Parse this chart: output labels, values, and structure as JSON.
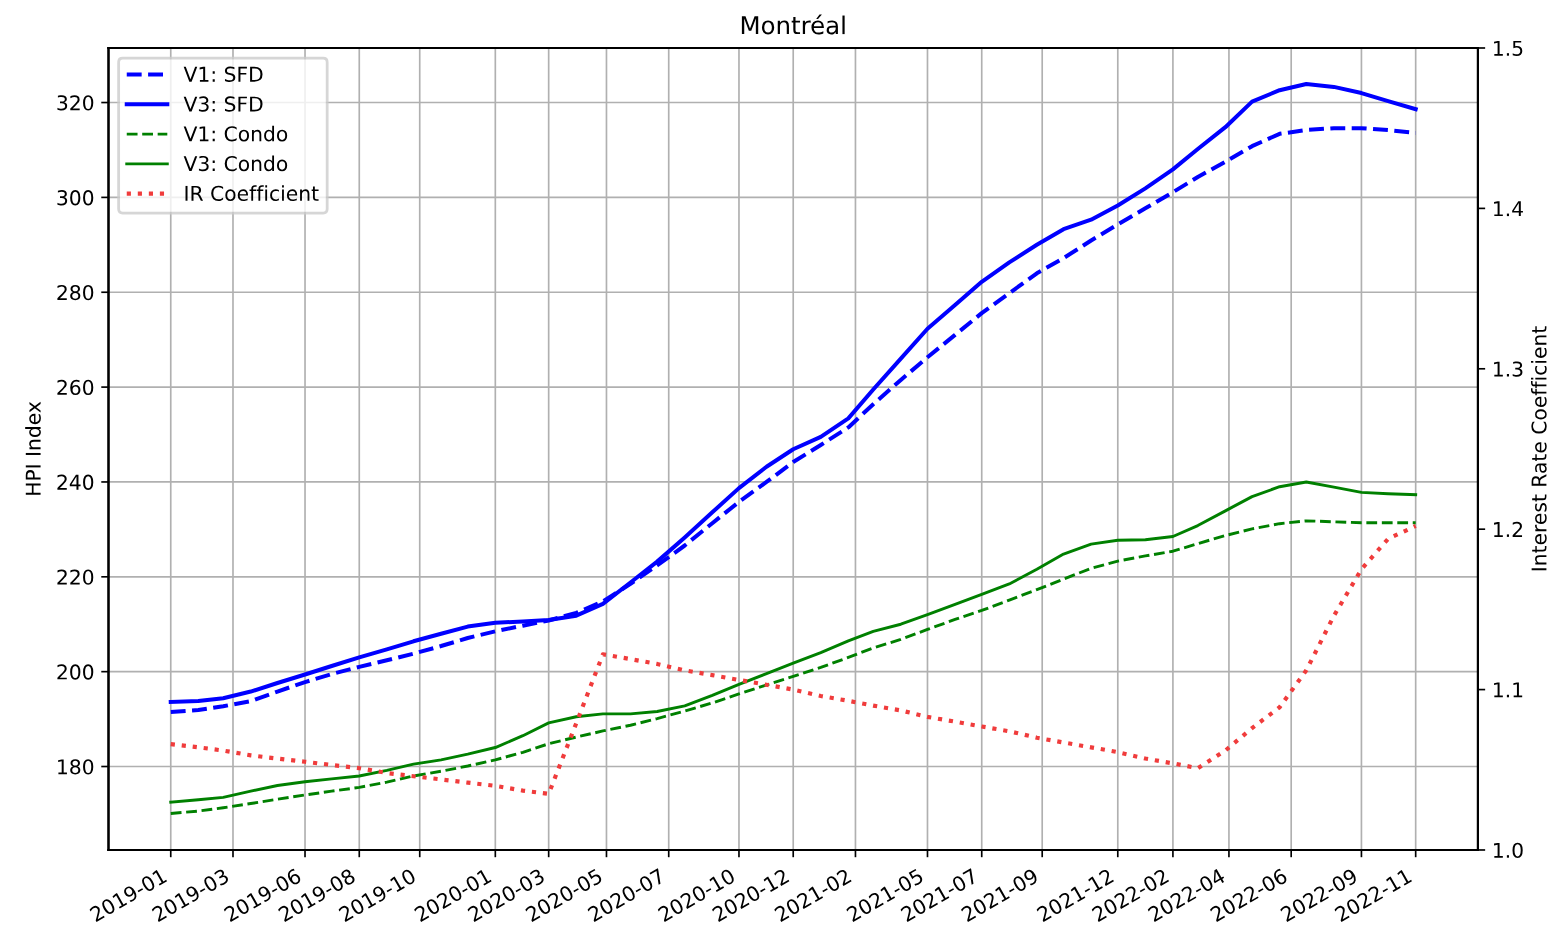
{
  "chart_data": {
    "type": "line",
    "title": "Montréal",
    "ylabel": "HPI Index",
    "y2label": "Interest Rate Coefficient",
    "x": [
      "2019-01",
      "2019-02",
      "2019-03",
      "2019-04",
      "2019-05",
      "2019-06",
      "2019-07",
      "2019-08",
      "2019-09",
      "2019-10",
      "2019-11",
      "2019-12",
      "2020-01",
      "2020-02",
      "2020-03",
      "2020-04",
      "2020-05",
      "2020-06",
      "2020-07",
      "2020-08",
      "2020-09",
      "2020-10",
      "2020-11",
      "2020-12",
      "2021-01",
      "2021-02",
      "2021-03",
      "2021-04",
      "2021-05",
      "2021-06",
      "2021-07",
      "2021-08",
      "2021-09",
      "2021-10",
      "2021-11",
      "2021-12",
      "2022-01",
      "2022-02",
      "2022-03",
      "2022-04",
      "2022-05",
      "2022-06",
      "2022-07",
      "2022-08",
      "2022-09",
      "2022-10",
      "2022-11"
    ],
    "series": [
      {
        "name": "V1: SFD",
        "color": "#0000ff",
        "line_style": "dashed",
        "values": [
          191.5,
          191.9,
          192.7,
          193.8,
          195.8,
          197.8,
          199.5,
          201.0,
          202.4,
          203.8,
          205.4,
          207.1,
          208.5,
          209.7,
          210.8,
          212.4,
          214.8,
          218.5,
          222.4,
          226.6,
          231.3,
          235.8,
          240.0,
          244.2,
          247.8,
          251.5,
          256.4,
          261.5,
          266.3,
          271.0,
          275.6,
          279.8,
          284.0,
          287.2,
          290.9,
          294.3,
          297.7,
          301.1,
          304.3,
          307.5,
          310.8,
          313.4,
          314.2,
          314.6,
          314.6,
          314.2,
          313.6
        ]
      },
      {
        "name": "V3: SFD",
        "color": "#0000ff",
        "line_style": "solid",
        "values": [
          193.6,
          193.8,
          194.4,
          195.8,
          197.6,
          199.4,
          201.2,
          203.0,
          204.7,
          206.4,
          208.0,
          209.5,
          210.3,
          210.6,
          210.9,
          211.8,
          214.3,
          218.8,
          223.2,
          228.3,
          233.6,
          238.7,
          243.2,
          246.9,
          249.5,
          253.4,
          259.5,
          266.0,
          272.3,
          277.3,
          282.2,
          286.3,
          290.0,
          293.3,
          295.3,
          298.3,
          301.9,
          305.9,
          310.2,
          314.8,
          320.2,
          322.6,
          323.9,
          323.3,
          322.0,
          320.3,
          318.6
        ]
      },
      {
        "name": "V1: Condo",
        "color": "#008000",
        "line_style": "dashed",
        "values": [
          170.1,
          170.6,
          171.3,
          172.2,
          173.1,
          174.0,
          174.8,
          175.6,
          176.7,
          178.0,
          179.0,
          180.1,
          181.4,
          183.0,
          184.8,
          186.2,
          187.5,
          188.7,
          190.1,
          191.7,
          193.4,
          195.3,
          197.2,
          199.0,
          200.9,
          203.0,
          205.0,
          206.8,
          208.9,
          211.0,
          212.9,
          215.1,
          217.3,
          219.5,
          221.8,
          223.3,
          224.4,
          225.4,
          227.0,
          228.7,
          230.1,
          231.2,
          231.8,
          231.6,
          231.4,
          231.4,
          231.4
        ]
      },
      {
        "name": "V3: Condo",
        "color": "#008000",
        "line_style": "solid",
        "values": [
          172.5,
          173.0,
          173.5,
          174.8,
          176.0,
          176.8,
          177.4,
          178.0,
          179.2,
          180.5,
          181.4,
          182.6,
          184.0,
          186.5,
          189.2,
          190.5,
          191.1,
          191.1,
          191.6,
          192.8,
          195.0,
          197.3,
          199.6,
          201.8,
          204.0,
          206.5,
          208.5,
          210.0,
          212.0,
          214.2,
          216.3,
          218.5,
          221.6,
          224.8,
          226.9,
          227.7,
          227.8,
          228.5,
          230.8,
          233.9,
          236.9,
          239.0,
          240.0,
          238.9,
          237.8,
          237.5,
          237.3
        ]
      },
      {
        "name": "IR Coefficient",
        "color": "#f03c3c",
        "line_style": "dotted",
        "axis": "y2",
        "values": [
          1.066,
          1.064,
          1.062,
          1.059,
          1.057,
          1.055,
          1.053,
          1.051,
          1.048,
          1.046,
          1.044,
          1.042,
          1.04,
          1.037,
          1.035,
          1.079,
          1.122,
          1.119,
          1.116,
          1.112,
          1.109,
          1.106,
          1.103,
          1.1,
          1.096,
          1.093,
          1.09,
          1.087,
          1.083,
          1.08,
          1.077,
          1.074,
          1.07,
          1.067,
          1.064,
          1.061,
          1.057,
          1.054,
          1.051,
          1.062,
          1.076,
          1.089,
          1.112,
          1.146,
          1.175,
          1.194,
          1.202
        ]
      }
    ],
    "xlim": [
      "2018-10-23",
      "2023-01-10"
    ],
    "xticks": [
      {
        "value": "2019-01-01",
        "label": "2019-01"
      },
      {
        "value": "2019-03-12",
        "label": "2019-03"
      },
      {
        "value": "2019-06-01",
        "label": "2019-06"
      },
      {
        "value": "2019-08-01",
        "label": "2019-08"
      },
      {
        "value": "2019-10-08",
        "label": "2019-10"
      },
      {
        "value": "2020-01-01",
        "label": "2020-01"
      },
      {
        "value": "2020-03-01",
        "label": "2020-03"
      },
      {
        "value": "2020-05-05",
        "label": "2020-05"
      },
      {
        "value": "2020-07-14",
        "label": "2020-07"
      },
      {
        "value": "2020-10-01",
        "label": "2020-10"
      },
      {
        "value": "2020-12-01",
        "label": "2020-12"
      },
      {
        "value": "2021-02-09",
        "label": "2021-02"
      },
      {
        "value": "2021-05-01",
        "label": "2021-05"
      },
      {
        "value": "2021-07-01",
        "label": "2021-07"
      },
      {
        "value": "2021-09-07",
        "label": "2021-09"
      },
      {
        "value": "2021-12-01",
        "label": "2021-12"
      },
      {
        "value": "2022-02-01",
        "label": "2022-02"
      },
      {
        "value": "2022-04-05",
        "label": "2022-04"
      },
      {
        "value": "2022-06-14",
        "label": "2022-06"
      },
      {
        "value": "2022-09-01",
        "label": "2022-09"
      },
      {
        "value": "2022-11-01",
        "label": "2022-11"
      }
    ],
    "ylim": [
      162.4,
      331.5
    ],
    "yticks": [
      180,
      200,
      220,
      240,
      260,
      280,
      300,
      320
    ],
    "y2lim": [
      1.0,
      1.5
    ],
    "y2ticks": [
      {
        "value": 1,
        "label": "1.0"
      },
      1.1,
      1.2,
      1.3,
      1.4,
      1.5
    ],
    "grid": true,
    "legend": "top left"
  }
}
